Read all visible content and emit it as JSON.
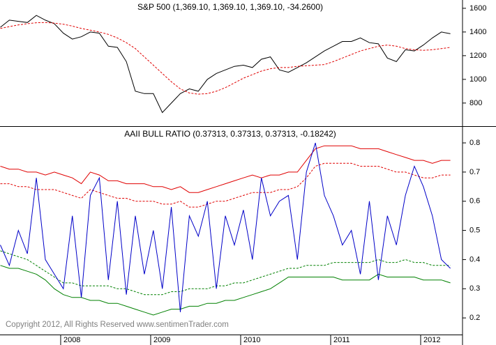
{
  "chart_data": [
    {
      "type": "line",
      "title": "S&P 500 (1,369.10, 1,369.10, 1,369.10, -34.2600)",
      "x": [
        2007.33,
        2007.43,
        2007.53,
        2007.63,
        2007.73,
        2007.83,
        2007.93,
        2008.03,
        2008.13,
        2008.23,
        2008.33,
        2008.43,
        2008.53,
        2008.63,
        2008.73,
        2008.83,
        2008.93,
        2009.03,
        2009.13,
        2009.23,
        2009.33,
        2009.43,
        2009.53,
        2009.63,
        2009.73,
        2009.83,
        2009.93,
        2010.03,
        2010.13,
        2010.23,
        2010.33,
        2010.43,
        2010.53,
        2010.63,
        2010.73,
        2010.83,
        2010.93,
        2011.03,
        2011.13,
        2011.23,
        2011.33,
        2011.43,
        2011.53,
        2011.63,
        2011.73,
        2011.83,
        2011.93,
        2012.03,
        2012.13,
        2012.23,
        2012.33
      ],
      "xlim": [
        2007.326,
        2012.465
      ],
      "ylim": [
        605,
        1670
      ],
      "yticks": [
        800,
        1000,
        1200,
        1400,
        1600
      ],
      "series": [
        {
          "color": "#000000",
          "style": "solid",
          "values": [
            1440,
            1500,
            1490,
            1480,
            1540,
            1500,
            1470,
            1390,
            1340,
            1360,
            1400,
            1390,
            1280,
            1270,
            1150,
            900,
            880,
            880,
            720,
            800,
            880,
            920,
            900,
            1000,
            1050,
            1080,
            1110,
            1120,
            1100,
            1170,
            1190,
            1080,
            1060,
            1100,
            1140,
            1190,
            1240,
            1280,
            1320,
            1320,
            1350,
            1310,
            1300,
            1180,
            1150,
            1250,
            1240,
            1290,
            1350,
            1400,
            1385
          ]
        },
        {
          "color": "#e00000",
          "style": "dashed",
          "values": [
            1430,
            1445,
            1460,
            1470,
            1478,
            1480,
            1475,
            1465,
            1450,
            1430,
            1415,
            1400,
            1380,
            1350,
            1310,
            1260,
            1190,
            1120,
            1050,
            980,
            920,
            885,
            875,
            880,
            900,
            930,
            970,
            1010,
            1040,
            1070,
            1090,
            1100,
            1100,
            1110,
            1115,
            1120,
            1125,
            1150,
            1180,
            1210,
            1240,
            1260,
            1280,
            1290,
            1280,
            1260,
            1250,
            1245,
            1250,
            1260,
            1270
          ]
        }
      ]
    },
    {
      "type": "line",
      "title": "AAII BULL RATIO (0.37313, 0.37313, 0.37313, -0.18242)",
      "annotation": "Copyright 2012, All Rights Reserved  www.sentimenTrader.com",
      "x": [
        2007.33,
        2007.43,
        2007.53,
        2007.63,
        2007.73,
        2007.83,
        2007.93,
        2008.03,
        2008.13,
        2008.23,
        2008.33,
        2008.43,
        2008.53,
        2008.63,
        2008.73,
        2008.83,
        2008.93,
        2009.03,
        2009.13,
        2009.23,
        2009.33,
        2009.43,
        2009.53,
        2009.63,
        2009.73,
        2009.83,
        2009.93,
        2010.03,
        2010.13,
        2010.23,
        2010.33,
        2010.43,
        2010.53,
        2010.63,
        2010.73,
        2010.83,
        2010.93,
        2011.03,
        2011.13,
        2011.23,
        2011.33,
        2011.43,
        2011.53,
        2011.63,
        2011.73,
        2011.83,
        2011.93,
        2012.03,
        2012.13,
        2012.23,
        2012.33
      ],
      "xlim": [
        2007.326,
        2012.465
      ],
      "xticks": [
        2008,
        2009,
        2010,
        2011,
        2012
      ],
      "ylim": [
        0.143,
        0.855
      ],
      "yticks": [
        0.2,
        0.3,
        0.4,
        0.5,
        0.6,
        0.7,
        0.8
      ],
      "series": [
        {
          "color": "#e00000",
          "style": "solid",
          "values": [
            0.72,
            0.71,
            0.71,
            0.7,
            0.7,
            0.69,
            0.7,
            0.69,
            0.68,
            0.66,
            0.7,
            0.69,
            0.67,
            0.67,
            0.66,
            0.66,
            0.66,
            0.65,
            0.65,
            0.64,
            0.65,
            0.63,
            0.63,
            0.64,
            0.65,
            0.66,
            0.67,
            0.68,
            0.69,
            0.68,
            0.69,
            0.69,
            0.7,
            0.7,
            0.74,
            0.78,
            0.79,
            0.79,
            0.79,
            0.79,
            0.78,
            0.78,
            0.78,
            0.77,
            0.76,
            0.75,
            0.74,
            0.74,
            0.73,
            0.74,
            0.74
          ]
        },
        {
          "color": "#e00000",
          "style": "dashed",
          "values": [
            0.66,
            0.66,
            0.65,
            0.65,
            0.64,
            0.64,
            0.64,
            0.63,
            0.62,
            0.61,
            0.64,
            0.63,
            0.62,
            0.61,
            0.61,
            0.6,
            0.6,
            0.6,
            0.59,
            0.59,
            0.6,
            0.58,
            0.58,
            0.59,
            0.6,
            0.6,
            0.61,
            0.62,
            0.63,
            0.63,
            0.63,
            0.64,
            0.64,
            0.65,
            0.68,
            0.72,
            0.73,
            0.73,
            0.73,
            0.73,
            0.72,
            0.72,
            0.72,
            0.71,
            0.7,
            0.7,
            0.69,
            0.68,
            0.68,
            0.69,
            0.69
          ]
        },
        {
          "color": "#008000",
          "style": "dashed",
          "values": [
            0.43,
            0.42,
            0.41,
            0.4,
            0.38,
            0.36,
            0.34,
            0.32,
            0.32,
            0.31,
            0.31,
            0.31,
            0.31,
            0.3,
            0.3,
            0.29,
            0.28,
            0.28,
            0.28,
            0.29,
            0.29,
            0.3,
            0.3,
            0.3,
            0.31,
            0.31,
            0.32,
            0.32,
            0.33,
            0.34,
            0.35,
            0.36,
            0.37,
            0.37,
            0.38,
            0.38,
            0.38,
            0.39,
            0.39,
            0.39,
            0.39,
            0.39,
            0.4,
            0.39,
            0.39,
            0.4,
            0.39,
            0.39,
            0.38,
            0.38,
            0.38
          ]
        },
        {
          "color": "#008000",
          "style": "solid",
          "values": [
            0.38,
            0.37,
            0.37,
            0.36,
            0.35,
            0.33,
            0.3,
            0.28,
            0.27,
            0.27,
            0.26,
            0.26,
            0.25,
            0.25,
            0.24,
            0.23,
            0.22,
            0.21,
            0.22,
            0.23,
            0.23,
            0.24,
            0.24,
            0.25,
            0.25,
            0.26,
            0.26,
            0.27,
            0.28,
            0.29,
            0.3,
            0.32,
            0.34,
            0.34,
            0.34,
            0.34,
            0.34,
            0.34,
            0.33,
            0.33,
            0.33,
            0.33,
            0.35,
            0.34,
            0.34,
            0.34,
            0.34,
            0.33,
            0.33,
            0.33,
            0.32
          ]
        },
        {
          "color": "#0000c8",
          "style": "solid",
          "values": [
            0.45,
            0.38,
            0.5,
            0.42,
            0.68,
            0.4,
            0.35,
            0.3,
            0.55,
            0.27,
            0.62,
            0.68,
            0.33,
            0.6,
            0.28,
            0.55,
            0.35,
            0.5,
            0.3,
            0.58,
            0.22,
            0.55,
            0.48,
            0.6,
            0.3,
            0.55,
            0.45,
            0.57,
            0.4,
            0.68,
            0.55,
            0.6,
            0.62,
            0.4,
            0.7,
            0.8,
            0.62,
            0.55,
            0.45,
            0.5,
            0.35,
            0.6,
            0.33,
            0.55,
            0.45,
            0.62,
            0.72,
            0.65,
            0.55,
            0.4,
            0.37
          ]
        }
      ]
    }
  ]
}
